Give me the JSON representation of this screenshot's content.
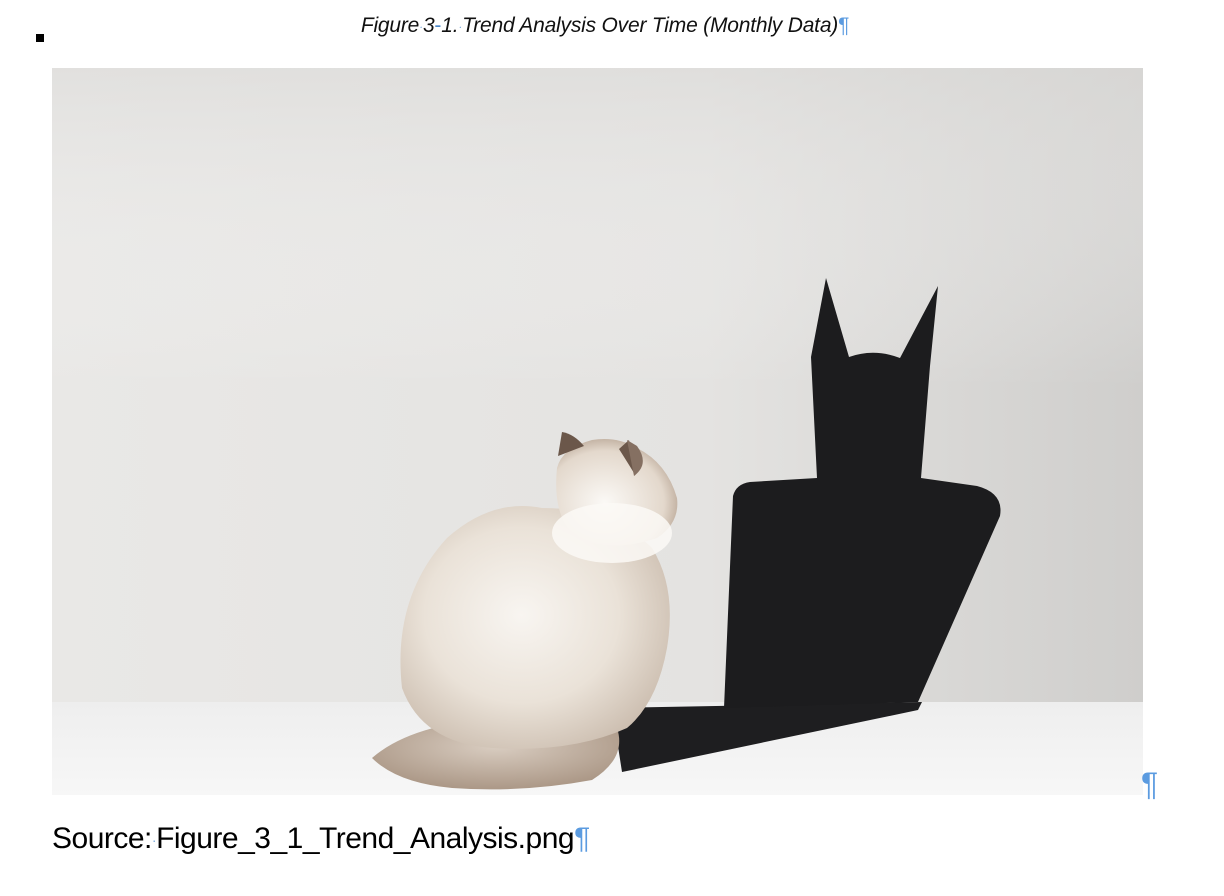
{
  "caption": {
    "prefix": "Figure",
    "number_a": "3",
    "dash": "-",
    "number_b": "1.",
    "title": "Trend Analysis Over Time (Monthly Data)",
    "paragraph_mark": "¶"
  },
  "figure": {
    "image_subject": "cat-with-bat-shadow",
    "colors": {
      "wall": "#e6e5e3",
      "floor": "#f4f4f4",
      "shadow": "#1c1c1e",
      "cat_fur": "#efe8e0",
      "cat_points": "#8a7566"
    }
  },
  "paragraph_mark_right": "¶",
  "source": {
    "label": "Source:",
    "filename": "Figure_3_1_Trend_Analysis.png",
    "paragraph_mark": "¶"
  }
}
